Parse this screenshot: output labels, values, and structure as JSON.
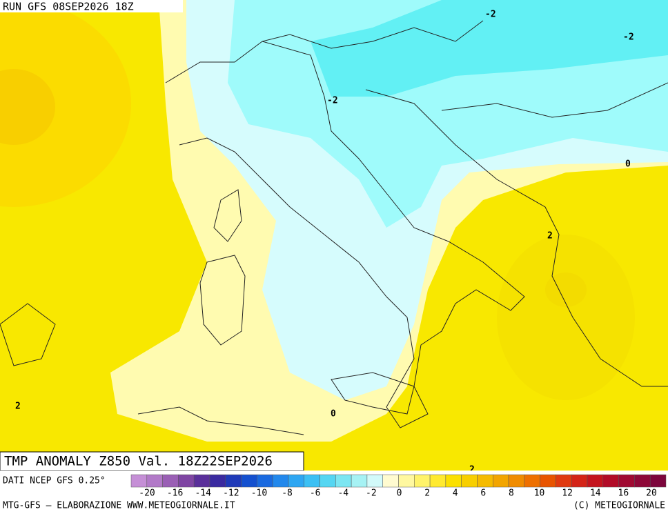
{
  "header": {
    "run": "RUN GFS 08SEP2026 18Z",
    "title": "TMP ANOMALY Z850 Val. 18Z22SEP2026",
    "source": "DATI NCEP GFS 0.25°"
  },
  "contour_labels": [
    "-2",
    "-2",
    "-2",
    "0",
    "2",
    "0",
    "2",
    "2"
  ],
  "legend": {
    "colors": [
      "#c58fd6",
      "#b27ac8",
      "#9a5fb5",
      "#7f45a3",
      "#5a2f9a",
      "#3a2aa0",
      "#1f3ab8",
      "#1450cf",
      "#1a6ae0",
      "#2288ec",
      "#2ea6f2",
      "#3cc0f4",
      "#55d6f2",
      "#7ce6f2",
      "#a6f2f4",
      "#d2fafa",
      "#fffbd0",
      "#fff8a0",
      "#fff36a",
      "#ffea30",
      "#fbe000",
      "#f8cf00",
      "#f5bb00",
      "#f2a500",
      "#f08c00",
      "#ee7000",
      "#e85400",
      "#e03a10",
      "#d42418",
      "#c4141e",
      "#b20c28",
      "#a00a32",
      "#8e0838",
      "#7c063c"
    ],
    "labels": [
      "-20",
      "-16",
      "-14",
      "-12",
      "-10",
      "-8",
      "-6",
      "-4",
      "-2",
      "0",
      "2",
      "4",
      "6",
      "8",
      "10",
      "12",
      "14",
      "16",
      "20"
    ]
  },
  "footer": {
    "left": "MTG-GFS — ELABORAZIONE WWW.METEOGIORNALE.IT",
    "right": "(C) METEOGIORNALE"
  }
}
